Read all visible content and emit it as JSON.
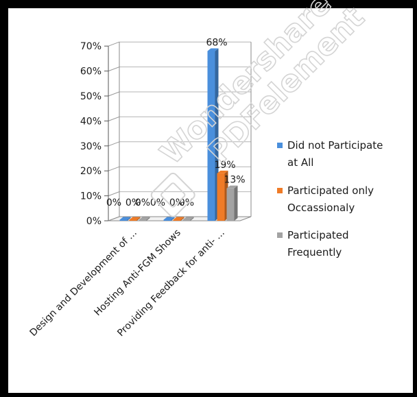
{
  "chart_data": {
    "type": "bar",
    "categories": [
      "Design and Development of ...",
      "Hosting Anti-FGM Shows",
      "Providing Feedback for anti- ..."
    ],
    "series": [
      {
        "name": "Did not Participate at All",
        "values": [
          0,
          0,
          68
        ],
        "labels": [
          "0%",
          "0%",
          "68%"
        ],
        "color": "#4a8fdc"
      },
      {
        "name": "Participated only Occassionaly",
        "values": [
          0,
          0,
          19
        ],
        "labels": [
          "0%",
          "0%",
          "19%"
        ],
        "color": "#ef7b27"
      },
      {
        "name": "Participated Frequently",
        "values": [
          0,
          0,
          13
        ],
        "labels": [
          "0%",
          "0%",
          "13%"
        ],
        "color": "#a3a3a3"
      }
    ],
    "legend_lines": [
      [
        "Did not Participate",
        "at All"
      ],
      [
        "Participated only",
        "Occassionaly"
      ],
      [
        "Participated",
        "Frequently"
      ]
    ],
    "y_ticks": [
      "0%",
      "10%",
      "20%",
      "30%",
      "40%",
      "50%",
      "60%",
      "70%"
    ],
    "ylim": [
      0,
      70
    ],
    "grid": true,
    "legend_position": "right",
    "style": "3d-clustered-column"
  },
  "watermark": {
    "lines": [
      "Wondershare",
      "PDFelement"
    ]
  }
}
